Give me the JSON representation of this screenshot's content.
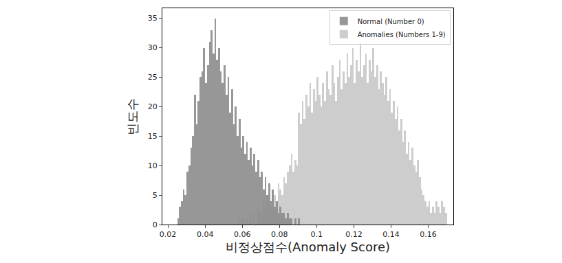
{
  "chart_data": {
    "type": "histogram",
    "x_label": "비정상점수(Anomaly Score)",
    "y_label": "빈도수",
    "bins": [
      0.024,
      0.025,
      0.026,
      0.027,
      0.028,
      0.029,
      0.03,
      0.031,
      0.032,
      0.033,
      0.034,
      0.035,
      0.036,
      0.037,
      0.038,
      0.039,
      0.04,
      0.041,
      0.042,
      0.043,
      0.044,
      0.045,
      0.046,
      0.047,
      0.048,
      0.049,
      0.05,
      0.051,
      0.052,
      0.053,
      0.054,
      0.055,
      0.056,
      0.057,
      0.058,
      0.059,
      0.06,
      0.061,
      0.062,
      0.063,
      0.064,
      0.065,
      0.066,
      0.067,
      0.068,
      0.069,
      0.07,
      0.071,
      0.072,
      0.073,
      0.074,
      0.075,
      0.076,
      0.077,
      0.078,
      0.079,
      0.08,
      0.081,
      0.082,
      0.083,
      0.084,
      0.085,
      0.086,
      0.087,
      0.088,
      0.089,
      0.09,
      0.091,
      0.092,
      0.093,
      0.094,
      0.095,
      0.096,
      0.097,
      0.098,
      0.099,
      0.1,
      0.101,
      0.102,
      0.103,
      0.104,
      0.105,
      0.106,
      0.107,
      0.108,
      0.109,
      0.11,
      0.111,
      0.112,
      0.113,
      0.114,
      0.115,
      0.116,
      0.117,
      0.118,
      0.119,
      0.12,
      0.121,
      0.122,
      0.123,
      0.124,
      0.125,
      0.126,
      0.127,
      0.128,
      0.129,
      0.13,
      0.131,
      0.132,
      0.133,
      0.134,
      0.135,
      0.136,
      0.137,
      0.138,
      0.139,
      0.14,
      0.141,
      0.142,
      0.143,
      0.144,
      0.145,
      0.146,
      0.147,
      0.148,
      0.149,
      0.15,
      0.151,
      0.152,
      0.153,
      0.154,
      0.155,
      0.156,
      0.157,
      0.158,
      0.159,
      0.16,
      0.161,
      0.162,
      0.163,
      0.164,
      0.165,
      0.166,
      0.167,
      0.168,
      0.169,
      0.17
    ],
    "series": [
      {
        "name": "Normal (Number 0)",
        "color": "#8c8c8c",
        "values": [
          0,
          1,
          3,
          4,
          6,
          5,
          9,
          10,
          13,
          15,
          22,
          17,
          21,
          25,
          26,
          30,
          24,
          27,
          31,
          33,
          29,
          35,
          28,
          30,
          26,
          24,
          27,
          22,
          25,
          19,
          23,
          17,
          20,
          15,
          18,
          13,
          15,
          12,
          14,
          11,
          13,
          10,
          12,
          9,
          11,
          8,
          9,
          6,
          8,
          5,
          7,
          4,
          6,
          3,
          4,
          2,
          3,
          2,
          2,
          1,
          2,
          1,
          1,
          0,
          1,
          0,
          1,
          0,
          0,
          0,
          0,
          0,
          0,
          0,
          0,
          0,
          0,
          0,
          0,
          0,
          0,
          0,
          0,
          0,
          0,
          0,
          0,
          0,
          0,
          0,
          0,
          0,
          0,
          0,
          0,
          0,
          0,
          0,
          0,
          0,
          0,
          0,
          0,
          0,
          0,
          0,
          0,
          0,
          0,
          0,
          0,
          0,
          0,
          0,
          0,
          0,
          0,
          0,
          0,
          0,
          0,
          0,
          0,
          0,
          0,
          0,
          0,
          0,
          0,
          0,
          0,
          0,
          0,
          0,
          0,
          0,
          0,
          0,
          0,
          0,
          0,
          0,
          0,
          0,
          0,
          0
        ]
      },
      {
        "name": "Anomalies (Numbers 1-9)",
        "color": "#cdcdcd",
        "values": [
          0,
          0,
          0,
          0,
          0,
          0,
          0,
          0,
          0,
          0,
          0,
          0,
          0,
          0,
          0,
          0,
          0,
          0,
          0,
          0,
          0,
          0,
          0,
          0,
          0,
          0,
          0,
          0,
          0,
          0,
          0,
          0,
          0,
          0,
          1,
          0,
          1,
          0,
          1,
          0,
          2,
          0,
          1,
          0,
          3,
          2,
          2,
          4,
          3,
          5,
          4,
          3,
          6,
          5,
          4,
          7,
          6,
          5,
          8,
          7,
          9,
          10,
          12,
          9,
          11,
          10,
          19,
          17,
          21,
          18,
          22,
          20,
          24,
          19,
          23,
          21,
          25,
          22,
          20,
          24,
          21,
          26,
          23,
          22,
          27,
          24,
          21,
          25,
          28,
          23,
          26,
          24,
          29,
          25,
          27,
          30,
          24,
          28,
          26,
          31,
          25,
          27,
          29,
          24,
          28,
          26,
          30,
          25,
          27,
          23,
          26,
          24,
          22,
          25,
          21,
          23,
          19,
          21,
          18,
          20,
          16,
          18,
          14,
          16,
          12,
          14,
          11,
          13,
          10,
          9,
          11,
          8,
          6,
          5,
          4,
          3,
          4,
          2,
          3,
          2,
          4,
          3,
          2,
          4,
          3,
          2
        ]
      }
    ],
    "xlim": [
      0.017,
      0.1735
    ],
    "xticks": [
      0.02,
      0.04,
      0.06,
      0.08,
      0.1,
      0.12,
      0.14,
      0.16
    ],
    "ylim": [
      0,
      36.7
    ],
    "yticks": [
      0,
      5,
      10,
      15,
      20,
      25,
      30,
      35
    ],
    "grid": false,
    "legend": "upper right"
  }
}
